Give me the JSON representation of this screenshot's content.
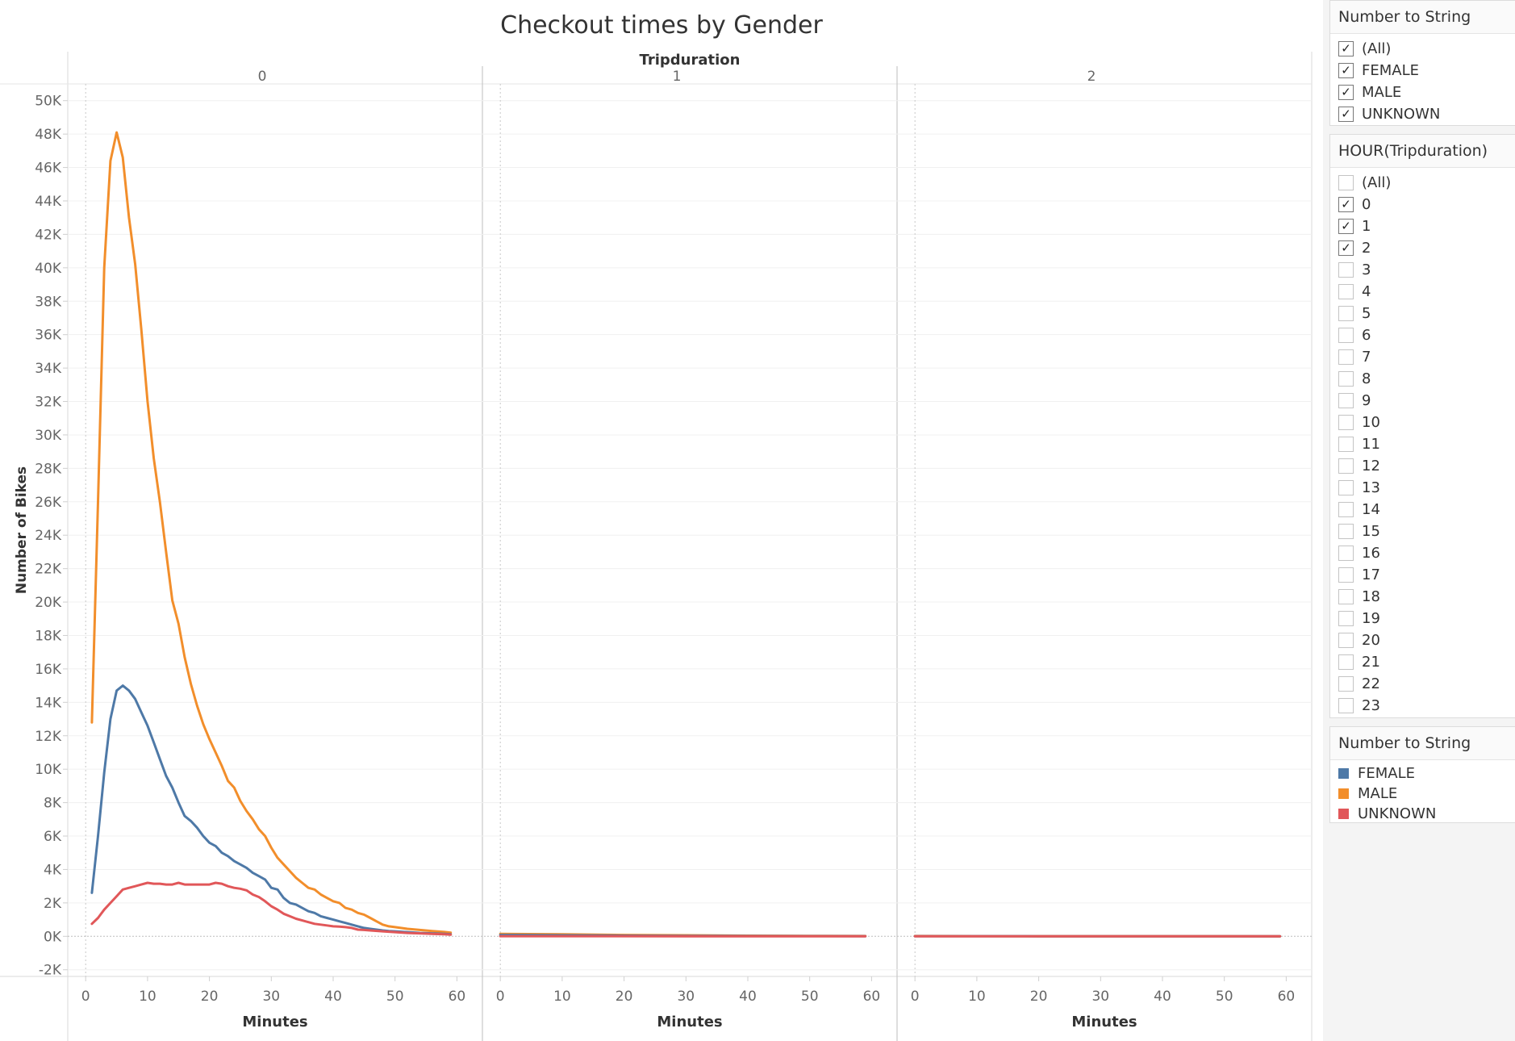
{
  "chart_data": {
    "type": "line",
    "title": "Checkout times by Gender",
    "column_header": "Tripduration",
    "panels": [
      "0",
      "1",
      "2"
    ],
    "xlabel": "Minutes",
    "ylabel": "Number of Bikes",
    "xlim": [
      -3,
      62
    ],
    "ylim": [
      -2400,
      51000
    ],
    "x_ticks": [
      0,
      10,
      20,
      30,
      40,
      50,
      60
    ],
    "y_ticks": [
      -2000,
      0,
      2000,
      4000,
      6000,
      8000,
      10000,
      12000,
      14000,
      16000,
      18000,
      20000,
      22000,
      24000,
      26000,
      28000,
      30000,
      32000,
      34000,
      36000,
      38000,
      40000,
      42000,
      44000,
      46000,
      48000,
      50000
    ],
    "y_tick_labels": [
      "-2K",
      "0K",
      "2K",
      "4K",
      "6K",
      "8K",
      "10K",
      "12K",
      "14K",
      "16K",
      "18K",
      "20K",
      "22K",
      "24K",
      "26K",
      "28K",
      "30K",
      "32K",
      "34K",
      "36K",
      "38K",
      "40K",
      "42K",
      "44K",
      "46K",
      "48K",
      "50K"
    ],
    "series": [
      {
        "name": "MALE",
        "color": "#F28E2B",
        "panels": [
          [
            [
              1,
              12800
            ],
            [
              2,
              26000
            ],
            [
              3,
              40000
            ],
            [
              4,
              46400
            ],
            [
              5,
              48100
            ],
            [
              6,
              46600
            ],
            [
              7,
              43000
            ],
            [
              8,
              40200
            ],
            [
              9,
              36300
            ],
            [
              10,
              32000
            ],
            [
              11,
              28600
            ],
            [
              12,
              26000
            ],
            [
              13,
              23000
            ],
            [
              14,
              20100
            ],
            [
              15,
              18700
            ],
            [
              16,
              16700
            ],
            [
              17,
              15100
            ],
            [
              18,
              13800
            ],
            [
              19,
              12700
            ],
            [
              20,
              11800
            ],
            [
              21,
              11000
            ],
            [
              22,
              10200
            ],
            [
              23,
              9300
            ],
            [
              24,
              8900
            ],
            [
              25,
              8100
            ],
            [
              26,
              7500
            ],
            [
              27,
              7000
            ],
            [
              28,
              6400
            ],
            [
              29,
              6000
            ],
            [
              30,
              5300
            ],
            [
              31,
              4700
            ],
            [
              32,
              4300
            ],
            [
              33,
              3900
            ],
            [
              34,
              3500
            ],
            [
              35,
              3200
            ],
            [
              36,
              2900
            ],
            [
              37,
              2800
            ],
            [
              38,
              2500
            ],
            [
              39,
              2300
            ],
            [
              40,
              2100
            ],
            [
              41,
              2000
            ],
            [
              42,
              1700
            ],
            [
              43,
              1600
            ],
            [
              44,
              1400
            ],
            [
              45,
              1300
            ],
            [
              46,
              1100
            ],
            [
              47,
              900
            ],
            [
              48,
              700
            ],
            [
              49,
              600
            ],
            [
              50,
              550
            ],
            [
              52,
              450
            ],
            [
              54,
              380
            ],
            [
              56,
              320
            ],
            [
              58,
              260
            ],
            [
              59,
              220
            ]
          ],
          [
            [
              0,
              150
            ],
            [
              10,
              120
            ],
            [
              20,
              80
            ],
            [
              30,
              60
            ],
            [
              40,
              40
            ],
            [
              50,
              30
            ],
            [
              59,
              20
            ]
          ],
          [
            [
              0,
              20
            ],
            [
              10,
              15
            ],
            [
              20,
              10
            ],
            [
              30,
              10
            ],
            [
              40,
              10
            ],
            [
              50,
              8
            ],
            [
              59,
              5
            ]
          ]
        ]
      },
      {
        "name": "FEMALE",
        "color": "#4E79A7",
        "panels": [
          [
            [
              1,
              2600
            ],
            [
              2,
              6000
            ],
            [
              3,
              9800
            ],
            [
              4,
              13000
            ],
            [
              5,
              14700
            ],
            [
              6,
              15000
            ],
            [
              7,
              14700
            ],
            [
              8,
              14200
            ],
            [
              9,
              13400
            ],
            [
              10,
              12600
            ],
            [
              11,
              11600
            ],
            [
              12,
              10600
            ],
            [
              13,
              9600
            ],
            [
              14,
              8900
            ],
            [
              15,
              8000
            ],
            [
              16,
              7200
            ],
            [
              17,
              6900
            ],
            [
              18,
              6500
            ],
            [
              19,
              6000
            ],
            [
              20,
              5600
            ],
            [
              21,
              5400
            ],
            [
              22,
              5000
            ],
            [
              23,
              4800
            ],
            [
              24,
              4500
            ],
            [
              25,
              4300
            ],
            [
              26,
              4100
            ],
            [
              27,
              3800
            ],
            [
              28,
              3600
            ],
            [
              29,
              3400
            ],
            [
              30,
              2900
            ],
            [
              31,
              2800
            ],
            [
              32,
              2300
            ],
            [
              33,
              2000
            ],
            [
              34,
              1900
            ],
            [
              35,
              1700
            ],
            [
              36,
              1500
            ],
            [
              37,
              1400
            ],
            [
              38,
              1200
            ],
            [
              39,
              1100
            ],
            [
              40,
              1000
            ],
            [
              41,
              900
            ],
            [
              42,
              800
            ],
            [
              43,
              700
            ],
            [
              44,
              600
            ],
            [
              45,
              500
            ],
            [
              46,
              450
            ],
            [
              47,
              400
            ],
            [
              48,
              350
            ],
            [
              49,
              320
            ],
            [
              50,
              300
            ],
            [
              52,
              250
            ],
            [
              54,
              200
            ],
            [
              56,
              180
            ],
            [
              58,
              150
            ],
            [
              59,
              120
            ]
          ],
          [
            [
              0,
              80
            ],
            [
              10,
              60
            ],
            [
              20,
              40
            ],
            [
              30,
              30
            ],
            [
              40,
              20
            ],
            [
              50,
              15
            ],
            [
              59,
              10
            ]
          ],
          [
            [
              0,
              10
            ],
            [
              10,
              8
            ],
            [
              20,
              6
            ],
            [
              30,
              5
            ],
            [
              40,
              4
            ],
            [
              50,
              3
            ],
            [
              59,
              2
            ]
          ]
        ]
      },
      {
        "name": "UNKNOWN",
        "color": "#E15759",
        "panels": [
          [
            [
              1,
              750
            ],
            [
              2,
              1100
            ],
            [
              3,
              1600
            ],
            [
              4,
              2000
            ],
            [
              5,
              2400
            ],
            [
              6,
              2800
            ],
            [
              7,
              2900
            ],
            [
              8,
              3000
            ],
            [
              9,
              3100
            ],
            [
              10,
              3200
            ],
            [
              11,
              3150
            ],
            [
              12,
              3150
            ],
            [
              13,
              3100
            ],
            [
              14,
              3100
            ],
            [
              15,
              3200
            ],
            [
              16,
              3100
            ],
            [
              17,
              3100
            ],
            [
              18,
              3100
            ],
            [
              19,
              3100
            ],
            [
              20,
              3100
            ],
            [
              21,
              3200
            ],
            [
              22,
              3150
            ],
            [
              23,
              3000
            ],
            [
              24,
              2900
            ],
            [
              25,
              2850
            ],
            [
              26,
              2750
            ],
            [
              27,
              2500
            ],
            [
              28,
              2350
            ],
            [
              29,
              2100
            ],
            [
              30,
              1800
            ],
            [
              31,
              1600
            ],
            [
              32,
              1350
            ],
            [
              33,
              1200
            ],
            [
              34,
              1050
            ],
            [
              35,
              950
            ],
            [
              36,
              850
            ],
            [
              37,
              750
            ],
            [
              38,
              700
            ],
            [
              39,
              650
            ],
            [
              40,
              600
            ],
            [
              41,
              580
            ],
            [
              42,
              550
            ],
            [
              43,
              500
            ],
            [
              44,
              400
            ],
            [
              45,
              380
            ],
            [
              46,
              350
            ],
            [
              48,
              300
            ],
            [
              50,
              250
            ],
            [
              52,
              200
            ],
            [
              54,
              180
            ],
            [
              56,
              150
            ],
            [
              58,
              120
            ],
            [
              59,
              100
            ]
          ],
          [
            [
              0,
              10
            ],
            [
              30,
              5
            ],
            [
              59,
              3
            ]
          ],
          [
            [
              0,
              5
            ],
            [
              30,
              3
            ],
            [
              59,
              2
            ]
          ]
        ]
      }
    ]
  },
  "filters": [
    {
      "title": "Number to String",
      "items": [
        {
          "label": "(All)",
          "checked": true
        },
        {
          "label": "FEMALE",
          "checked": true
        },
        {
          "label": "MALE",
          "checked": true
        },
        {
          "label": "UNKNOWN",
          "checked": true
        }
      ]
    },
    {
      "title": "HOUR(Tripduration)",
      "items": [
        {
          "label": "(All)",
          "checked": false
        },
        {
          "label": "0",
          "checked": true
        },
        {
          "label": "1",
          "checked": true
        },
        {
          "label": "2",
          "checked": true
        },
        {
          "label": "3",
          "checked": false
        },
        {
          "label": "4",
          "checked": false
        },
        {
          "label": "5",
          "checked": false
        },
        {
          "label": "6",
          "checked": false
        },
        {
          "label": "7",
          "checked": false
        },
        {
          "label": "8",
          "checked": false
        },
        {
          "label": "9",
          "checked": false
        },
        {
          "label": "10",
          "checked": false
        },
        {
          "label": "11",
          "checked": false
        },
        {
          "label": "12",
          "checked": false
        },
        {
          "label": "13",
          "checked": false
        },
        {
          "label": "14",
          "checked": false
        },
        {
          "label": "15",
          "checked": false
        },
        {
          "label": "16",
          "checked": false
        },
        {
          "label": "17",
          "checked": false
        },
        {
          "label": "18",
          "checked": false
        },
        {
          "label": "19",
          "checked": false
        },
        {
          "label": "20",
          "checked": false
        },
        {
          "label": "21",
          "checked": false
        },
        {
          "label": "22",
          "checked": false
        },
        {
          "label": "23",
          "checked": false
        }
      ]
    }
  ],
  "legend": {
    "title": "Number to String",
    "items": [
      {
        "label": "FEMALE",
        "color": "#4E79A7"
      },
      {
        "label": "MALE",
        "color": "#F28E2B"
      },
      {
        "label": "UNKNOWN",
        "color": "#E15759"
      }
    ]
  }
}
